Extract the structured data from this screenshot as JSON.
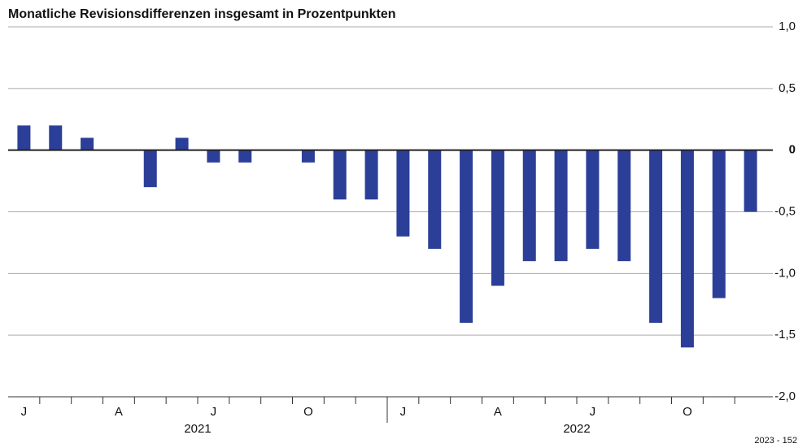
{
  "chart_data": {
    "type": "bar",
    "title": "Monatliche Revisionsdifferenzen insgesamt in Prozentpunkten",
    "categories": [
      "J",
      null,
      null,
      "A",
      null,
      null,
      "J",
      null,
      null,
      "O",
      null,
      null,
      "J",
      null,
      null,
      "A",
      null,
      null,
      "J",
      null,
      null,
      "O",
      null,
      null
    ],
    "year_labels": [
      "2021",
      "2022"
    ],
    "values": [
      0.2,
      0.2,
      0.1,
      0,
      -0.3,
      0.1,
      -0.1,
      -0.1,
      0,
      -0.1,
      -0.4,
      -0.4,
      -0.7,
      -0.8,
      -1.4,
      -1.1,
      -0.9,
      -0.9,
      -0.8,
      -0.9,
      -1.4,
      -1.6,
      -1.2,
      -0.5
    ],
    "color": "#2b3f99",
    "ylim": [
      -2,
      1
    ],
    "yticks": [
      {
        "value": 1,
        "label": "1,0"
      },
      {
        "value": 0.5,
        "label": "0,5"
      },
      0,
      {
        "value": -0.5,
        "label": "-0,5"
      },
      {
        "value": -1,
        "label": "-1,0"
      },
      {
        "value": -1.5,
        "label": "-1,5"
      },
      {
        "value": -2,
        "label": "-2,0"
      }
    ],
    "grid": true,
    "source": "2023 - 152"
  }
}
